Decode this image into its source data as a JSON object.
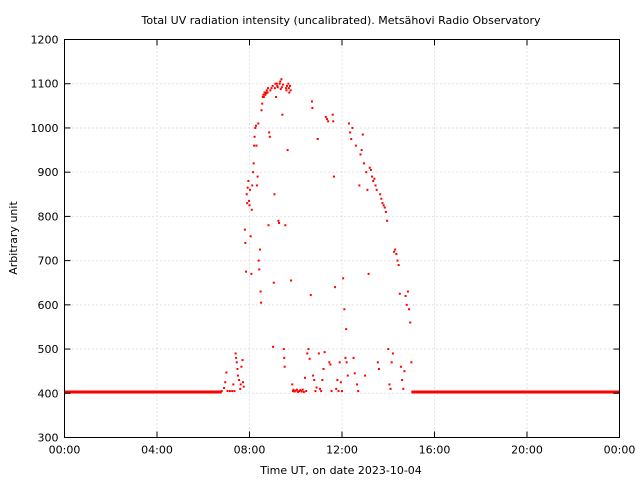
{
  "chart_data": {
    "type": "scatter",
    "title": "Total UV radiation intensity (uncalibrated). Metsähovi Radio Observatory",
    "xlabel": "Time UT, on date 2023-10-04",
    "ylabel": "Arbitrary unit",
    "x_units": "hours UT",
    "xlim": [
      0,
      24
    ],
    "ylim": [
      300,
      1200
    ],
    "x_ticks": [
      {
        "value": 0,
        "label": "00:00"
      },
      {
        "value": 4,
        "label": "04:00"
      },
      {
        "value": 8,
        "label": "08:00"
      },
      {
        "value": 12,
        "label": "12:00"
      },
      {
        "value": 16,
        "label": "16:00"
      },
      {
        "value": 20,
        "label": "20:00"
      },
      {
        "value": 24,
        "label": "00:00"
      }
    ],
    "y_ticks": [
      300,
      400,
      500,
      600,
      700,
      800,
      900,
      1000,
      1100,
      1200
    ],
    "grid": true,
    "marker_color": "#ff0000",
    "baseline": {
      "value": 403,
      "x_ranges": [
        [
          0,
          6.8
        ],
        [
          15.0,
          24
        ]
      ]
    },
    "series": [
      {
        "points": [
          [
            6.8,
            405
          ],
          [
            6.9,
            412
          ],
          [
            6.95,
            425
          ],
          [
            7.0,
            447
          ],
          [
            7.05,
            405
          ],
          [
            7.15,
            405
          ],
          [
            7.25,
            405
          ],
          [
            7.3,
            420
          ],
          [
            7.35,
            405
          ],
          [
            7.4,
            490
          ],
          [
            7.42,
            480
          ],
          [
            7.45,
            470
          ],
          [
            7.48,
            455
          ],
          [
            7.5,
            440
          ],
          [
            7.55,
            430
          ],
          [
            7.6,
            410
          ],
          [
            7.62,
            420
          ],
          [
            7.65,
            460
          ],
          [
            7.7,
            475
          ],
          [
            7.72,
            425
          ],
          [
            7.75,
            415
          ],
          [
            7.8,
            770
          ],
          [
            7.82,
            740
          ],
          [
            7.85,
            675
          ],
          [
            7.88,
            850
          ],
          [
            7.9,
            830
          ],
          [
            7.92,
            865
          ],
          [
            7.95,
            880
          ],
          [
            7.98,
            835
          ],
          [
            8.0,
            825
          ],
          [
            8.02,
            860
          ],
          [
            8.05,
            755
          ],
          [
            8.08,
            670
          ],
          [
            8.1,
            815
          ],
          [
            8.12,
            870
          ],
          [
            8.15,
            900
          ],
          [
            8.18,
            920
          ],
          [
            8.2,
            960
          ],
          [
            8.22,
            980
          ],
          [
            8.25,
            1000
          ],
          [
            8.28,
            1005
          ],
          [
            8.3,
            960
          ],
          [
            8.32,
            870
          ],
          [
            8.35,
            890
          ],
          [
            8.38,
            1010
          ],
          [
            8.4,
            700
          ],
          [
            8.42,
            680
          ],
          [
            8.45,
            725
          ],
          [
            8.48,
            630
          ],
          [
            8.5,
            605
          ],
          [
            8.52,
            1040
          ],
          [
            8.55,
            1055
          ],
          [
            8.58,
            1070
          ],
          [
            8.6,
            1075
          ],
          [
            8.62,
            1070
          ],
          [
            8.65,
            1080
          ],
          [
            8.68,
            1075
          ],
          [
            8.7,
            1080
          ],
          [
            8.72,
            1078
          ],
          [
            8.75,
            1085
          ],
          [
            8.78,
            1080
          ],
          [
            8.8,
            1090
          ],
          [
            8.82,
            780
          ],
          [
            8.85,
            990
          ],
          [
            8.88,
            980
          ],
          [
            8.9,
            1085
          ],
          [
            8.95,
            1090
          ],
          [
            9.0,
            1095
          ],
          [
            9.02,
            505
          ],
          [
            9.05,
            650
          ],
          [
            9.08,
            850
          ],
          [
            9.1,
            1090
          ],
          [
            9.12,
            1100
          ],
          [
            9.15,
            1070
          ],
          [
            9.18,
            1100
          ],
          [
            9.2,
            1095
          ],
          [
            9.22,
            1092
          ],
          [
            9.25,
            790
          ],
          [
            9.28,
            785
          ],
          [
            9.3,
            1100
          ],
          [
            9.33,
            1105
          ],
          [
            9.35,
            1088
          ],
          [
            9.38,
            1110
          ],
          [
            9.4,
            1092
          ],
          [
            9.42,
            1030
          ],
          [
            9.45,
            1098
          ],
          [
            9.48,
            500
          ],
          [
            9.5,
            480
          ],
          [
            9.52,
            460
          ],
          [
            9.55,
            780
          ],
          [
            9.58,
            1090
          ],
          [
            9.6,
            1085
          ],
          [
            9.62,
            1095
          ],
          [
            9.65,
            950
          ],
          [
            9.68,
            1100
          ],
          [
            9.7,
            1090
          ],
          [
            9.72,
            1080
          ],
          [
            9.75,
            1095
          ],
          [
            9.78,
            1085
          ],
          [
            9.8,
            655
          ],
          [
            9.85,
            420
          ],
          [
            9.88,
            405
          ],
          [
            9.9,
            408
          ],
          [
            9.95,
            404
          ],
          [
            10.0,
            406
          ],
          [
            10.05,
            408
          ],
          [
            10.1,
            403
          ],
          [
            10.15,
            405
          ],
          [
            10.2,
            407
          ],
          [
            10.25,
            404
          ],
          [
            10.3,
            408
          ],
          [
            10.35,
            403
          ],
          [
            10.4,
            435
          ],
          [
            10.45,
            405
          ],
          [
            10.5,
            490
          ],
          [
            10.55,
            500
          ],
          [
            10.6,
            478
          ],
          [
            10.65,
            622
          ],
          [
            10.7,
            1060
          ],
          [
            10.72,
            1045
          ],
          [
            10.75,
            440
          ],
          [
            10.8,
            430
          ],
          [
            10.85,
            405
          ],
          [
            10.9,
            413
          ],
          [
            10.95,
            975
          ],
          [
            11.0,
            490
          ],
          [
            11.05,
            410
          ],
          [
            11.1,
            405
          ],
          [
            11.15,
            430
          ],
          [
            11.2,
            455
          ],
          [
            11.25,
            493
          ],
          [
            11.3,
            1025
          ],
          [
            11.35,
            1020
          ],
          [
            11.4,
            1015
          ],
          [
            11.45,
            470
          ],
          [
            11.5,
            465
          ],
          [
            11.55,
            405
          ],
          [
            11.6,
            1030
          ],
          [
            11.62,
            1015
          ],
          [
            11.65,
            890
          ],
          [
            11.7,
            640
          ],
          [
            11.75,
            410
          ],
          [
            11.8,
            430
          ],
          [
            11.85,
            405
          ],
          [
            11.9,
            470
          ],
          [
            11.95,
            425
          ],
          [
            12.0,
            405
          ],
          [
            12.05,
            660
          ],
          [
            12.1,
            590
          ],
          [
            12.15,
            480
          ],
          [
            12.18,
            545
          ],
          [
            12.2,
            470
          ],
          [
            12.25,
            440
          ],
          [
            12.3,
            1010
          ],
          [
            12.35,
            990
          ],
          [
            12.4,
            975
          ],
          [
            12.45,
            1000
          ],
          [
            12.5,
            480
          ],
          [
            12.55,
            445
          ],
          [
            12.6,
            960
          ],
          [
            12.65,
            420
          ],
          [
            12.7,
            405
          ],
          [
            12.75,
            870
          ],
          [
            12.8,
            940
          ],
          [
            12.85,
            950
          ],
          [
            12.9,
            985
          ],
          [
            12.95,
            920
          ],
          [
            13.0,
            440
          ],
          [
            13.05,
            900
          ],
          [
            13.1,
            860
          ],
          [
            13.15,
            670
          ],
          [
            13.2,
            910
          ],
          [
            13.25,
            905
          ],
          [
            13.3,
            890
          ],
          [
            13.35,
            880
          ],
          [
            13.4,
            885
          ],
          [
            13.45,
            870
          ],
          [
            13.5,
            860
          ],
          [
            13.55,
            470
          ],
          [
            13.6,
            455
          ],
          [
            13.65,
            850
          ],
          [
            13.7,
            840
          ],
          [
            13.75,
            830
          ],
          [
            13.8,
            825
          ],
          [
            13.85,
            820
          ],
          [
            13.9,
            810
          ],
          [
            13.95,
            790
          ],
          [
            14.0,
            500
          ],
          [
            14.05,
            420
          ],
          [
            14.1,
            410
          ],
          [
            14.15,
            470
          ],
          [
            14.2,
            490
          ],
          [
            14.25,
            720
          ],
          [
            14.3,
            725
          ],
          [
            14.35,
            715
          ],
          [
            14.4,
            700
          ],
          [
            14.45,
            690
          ],
          [
            14.5,
            625
          ],
          [
            14.55,
            460
          ],
          [
            14.6,
            430
          ],
          [
            14.65,
            410
          ],
          [
            14.7,
            450
          ],
          [
            14.75,
            620
          ],
          [
            14.8,
            600
          ],
          [
            14.85,
            630
          ],
          [
            14.9,
            590
          ],
          [
            14.95,
            560
          ],
          [
            15.0,
            470
          ],
          [
            15.2,
            402
          ],
          [
            15.4,
            404
          ],
          [
            15.6,
            403
          ],
          [
            15.8,
            402
          ],
          [
            16.0,
            403
          ],
          [
            16.2,
            402
          ],
          [
            16.4,
            404
          ]
        ]
      }
    ]
  }
}
